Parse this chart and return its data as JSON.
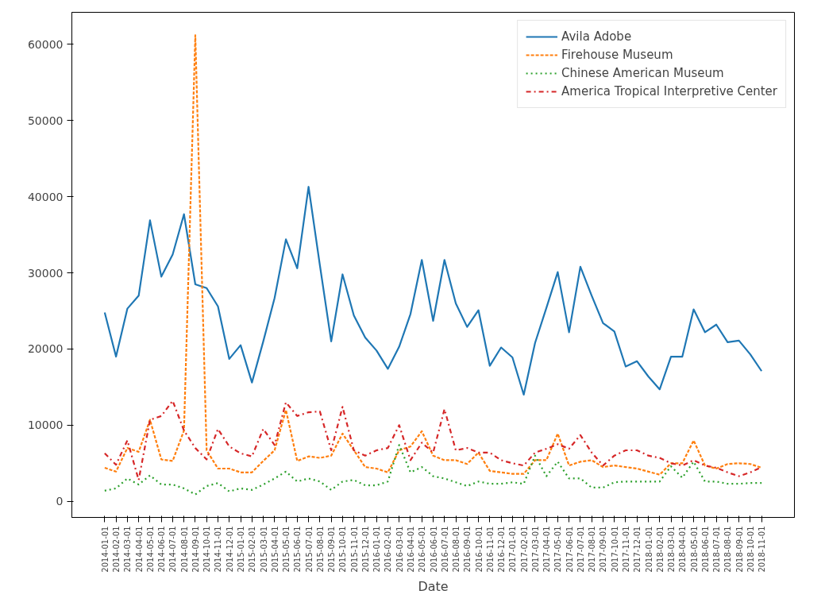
{
  "chart_data": {
    "type": "line",
    "xlabel": "Date",
    "categories": [
      "2014-01-01",
      "2014-02-01",
      "2014-03-01",
      "2014-04-01",
      "2014-05-01",
      "2014-06-01",
      "2014-07-01",
      "2014-08-01",
      "2014-09-01",
      "2014-10-01",
      "2014-11-01",
      "2014-12-01",
      "2015-01-01",
      "2015-02-01",
      "2015-03-01",
      "2015-04-01",
      "2015-05-01",
      "2015-06-01",
      "2015-07-01",
      "2015-08-01",
      "2015-09-01",
      "2015-10-01",
      "2015-11-01",
      "2015-12-01",
      "2016-01-01",
      "2016-02-01",
      "2016-03-01",
      "2016-04-01",
      "2016-05-01",
      "2016-06-01",
      "2016-07-01",
      "2016-08-01",
      "2016-09-01",
      "2016-10-01",
      "2016-11-01",
      "2016-12-01",
      "2017-01-01",
      "2017-02-01",
      "2017-03-01",
      "2017-04-01",
      "2017-05-01",
      "2017-06-01",
      "2017-07-01",
      "2017-08-01",
      "2017-09-01",
      "2017-10-01",
      "2017-11-01",
      "2017-12-01",
      "2018-01-01",
      "2018-02-01",
      "2018-03-01",
      "2018-04-01",
      "2018-05-01",
      "2018-06-01",
      "2018-07-01",
      "2018-08-01",
      "2018-09-01",
      "2018-10-01",
      "2018-11-01"
    ],
    "series": [
      {
        "name": "Avila Adobe",
        "color": "#1f77b4",
        "line_style": "solid",
        "values": [
          24800,
          19000,
          25300,
          27000,
          36900,
          29500,
          32400,
          37700,
          28500,
          28000,
          25600,
          18700,
          20500,
          15600,
          21000,
          26700,
          34400,
          30600,
          41300,
          31000,
          21000,
          29800,
          24400,
          21500,
          19800,
          17400,
          20300,
          24600,
          31700,
          23700,
          31700,
          26000,
          22900,
          25100,
          17800,
          20200,
          18900,
          14000,
          20800,
          25400,
          30100,
          22200,
          30800,
          27000,
          23400,
          22300,
          17700,
          18400,
          16400,
          14700,
          19000,
          19000,
          25200,
          22200,
          23200,
          20900,
          21100,
          19300,
          17100
        ]
      },
      {
        "name": "Firehouse Museum",
        "color": "#ff7f0e",
        "line_style": "dashed",
        "values": [
          4400,
          3900,
          7000,
          6500,
          10700,
          5500,
          5300,
          9300,
          61200,
          6700,
          4300,
          4300,
          3800,
          3800,
          5300,
          6700,
          12000,
          5300,
          5900,
          5700,
          6000,
          8900,
          6700,
          4500,
          4300,
          3800,
          6700,
          7200,
          9200,
          6000,
          5400,
          5400,
          4900,
          6400,
          4000,
          3800,
          3600,
          3600,
          5400,
          5400,
          8900,
          4700,
          5200,
          5400,
          4500,
          4700,
          4500,
          4300,
          3900,
          3500,
          5000,
          5000,
          8000,
          4700,
          4300,
          4900,
          5000,
          4900,
          4400
        ]
      },
      {
        "name": "Chinese American Museum",
        "color": "#2ca02c",
        "line_style": "dotted",
        "values": [
          1400,
          1700,
          3000,
          2200,
          3400,
          2200,
          2200,
          1700,
          900,
          2000,
          2400,
          1300,
          1700,
          1500,
          2200,
          3000,
          3900,
          2600,
          3000,
          2600,
          1500,
          2600,
          2800,
          2100,
          2100,
          2600,
          7400,
          3800,
          4500,
          3300,
          3000,
          2500,
          2000,
          2600,
          2300,
          2300,
          2500,
          2300,
          6000,
          3300,
          5200,
          3000,
          3000,
          1800,
          1800,
          2500,
          2600,
          2600,
          2600,
          2600,
          4600,
          3100,
          5200,
          2600,
          2600,
          2300,
          2300,
          2400,
          2400
        ]
      },
      {
        "name": "America Tropical Interpretive Center",
        "color": "#d62728",
        "line_style": "dashdot",
        "values": [
          6300,
          4800,
          8000,
          2800,
          10700,
          11200,
          13200,
          9300,
          7000,
          5500,
          9500,
          7200,
          6300,
          5900,
          9500,
          7400,
          13000,
          11200,
          11700,
          11800,
          6700,
          12400,
          6700,
          6000,
          6700,
          7000,
          10000,
          5400,
          7700,
          6400,
          12100,
          6700,
          7000,
          6400,
          6400,
          5400,
          5000,
          4700,
          6400,
          6900,
          7500,
          6900,
          8700,
          6400,
          4700,
          6000,
          6700,
          6700,
          6000,
          5700,
          5000,
          4700,
          5400,
          4700,
          4400,
          3800,
          3300,
          3800,
          4500
        ]
      }
    ],
    "ylim": [
      -2115,
      64215
    ],
    "yticks": [
      0,
      10000,
      20000,
      30000,
      40000,
      50000,
      60000
    ],
    "grid": false,
    "legend": "top right",
    "marker": "none"
  }
}
